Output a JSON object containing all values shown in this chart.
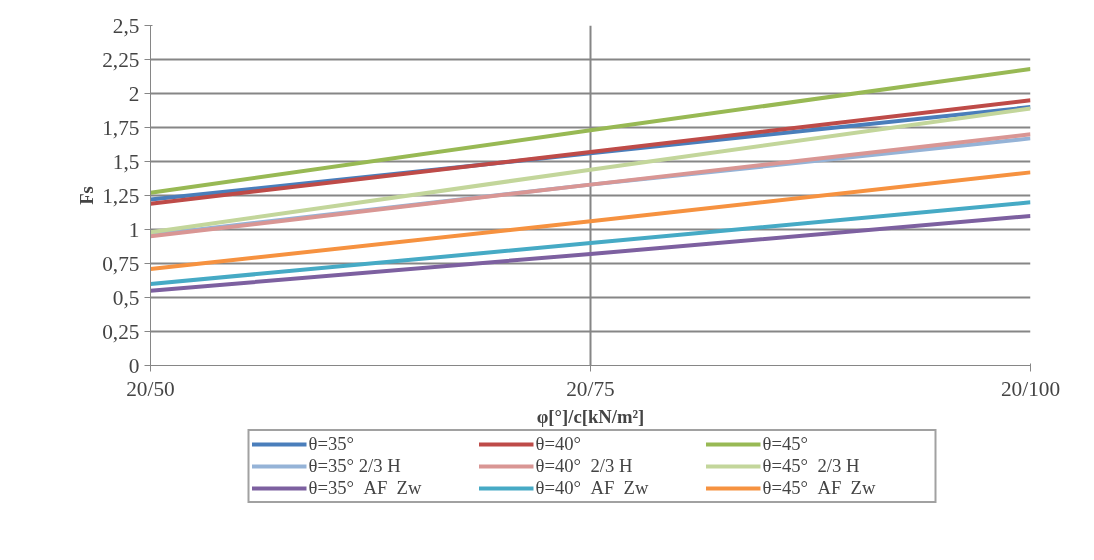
{
  "chart_data": {
    "type": "line",
    "xlabel": "φ[°]/c[kN/m²]",
    "ylabel": "Fs",
    "categories": [
      "20/50",
      "20/75",
      "20/100"
    ],
    "ylim": [
      0,
      2.5
    ],
    "yticks": [
      {
        "value": 0,
        "label": "0"
      },
      {
        "value": 0.25,
        "label": "0,25"
      },
      {
        "value": 0.5,
        "label": "0,5"
      },
      {
        "value": 0.75,
        "label": "0,75"
      },
      {
        "value": 1,
        "label": "1"
      },
      {
        "value": 1.25,
        "label": "1,25"
      },
      {
        "value": 1.5,
        "label": "1,5"
      },
      {
        "value": 1.75,
        "label": "1,75"
      },
      {
        "value": 2,
        "label": "2"
      },
      {
        "value": 2.25,
        "label": "2,25"
      },
      {
        "value": 2.5,
        "label": "2,5"
      }
    ],
    "grid": true,
    "legend": "bottom",
    "marker": "none",
    "line_style": "solid",
    "series": [
      {
        "name": "θ=35°",
        "color": "#4a7ebb",
        "values": [
          1.22,
          1.56,
          1.9
        ]
      },
      {
        "name": "θ=40°",
        "color": "#be4b48",
        "values": [
          1.19,
          1.57,
          1.95
        ]
      },
      {
        "name": "θ=45°",
        "color": "#98b954",
        "values": [
          1.27,
          1.73,
          2.18
        ]
      },
      {
        "name": "θ=35° 2/3 H",
        "color": "#95b3d7",
        "values": [
          0.96,
          1.33,
          1.67
        ]
      },
      {
        "name": "θ=40°  2/3 H",
        "color": "#d99694",
        "values": [
          0.95,
          1.33,
          1.7
        ]
      },
      {
        "name": "θ=45°  2/3 H",
        "color": "#c3d69b",
        "values": [
          0.98,
          1.44,
          1.89
        ]
      },
      {
        "name": "θ=35°  AF  Zw",
        "color": "#7d60a0",
        "values": [
          0.55,
          0.82,
          1.1
        ]
      },
      {
        "name": "θ=40°  AF  Zw",
        "color": "#46aac5",
        "values": [
          0.6,
          0.9,
          1.2
        ]
      },
      {
        "name": "θ=45°  AF  Zw",
        "color": "#f69240",
        "values": [
          0.71,
          1.06,
          1.42
        ]
      }
    ]
  }
}
